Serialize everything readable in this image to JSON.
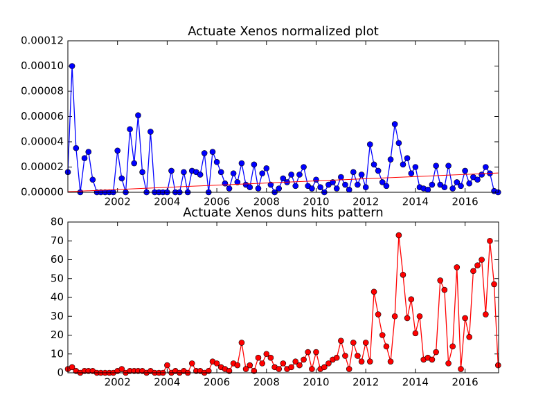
{
  "chart_data": [
    {
      "type": "line",
      "title": "Actuate Xenos normalized plot",
      "x": [
        2000,
        2000.17,
        2000.33,
        2000.5,
        2000.67,
        2000.83,
        2001,
        2001.17,
        2001.33,
        2001.5,
        2001.67,
        2001.83,
        2002,
        2002.17,
        2002.33,
        2002.5,
        2002.67,
        2002.83,
        2003,
        2003.17,
        2003.33,
        2003.5,
        2003.67,
        2003.83,
        2004,
        2004.17,
        2004.33,
        2004.5,
        2004.67,
        2004.83,
        2005,
        2005.17,
        2005.33,
        2005.5,
        2005.67,
        2005.83,
        2006,
        2006.17,
        2006.33,
        2006.5,
        2006.67,
        2006.83,
        2007,
        2007.17,
        2007.33,
        2007.5,
        2007.67,
        2007.83,
        2008,
        2008.17,
        2008.33,
        2008.5,
        2008.67,
        2008.83,
        2009,
        2009.17,
        2009.33,
        2009.5,
        2009.67,
        2009.83,
        2010,
        2010.17,
        2010.33,
        2010.5,
        2010.67,
        2010.83,
        2011,
        2011.17,
        2011.33,
        2011.5,
        2011.67,
        2011.83,
        2012,
        2012.17,
        2012.33,
        2012.5,
        2012.67,
        2012.83,
        2013,
        2013.17,
        2013.33,
        2013.5,
        2013.67,
        2013.83,
        2014,
        2014.17,
        2014.33,
        2014.5,
        2014.67,
        2014.83,
        2015,
        2015.17,
        2015.33,
        2015.5,
        2015.67,
        2015.83,
        2016,
        2016.17,
        2016.33,
        2016.5,
        2016.67,
        2016.83,
        2017,
        2017.17,
        2017.33
      ],
      "series": [
        {
          "color": "#0000ff",
          "values": [
            1.6e-05,
            0.0001,
            3.5e-05,
            0,
            2.7e-05,
            3.2e-05,
            1e-05,
            0,
            0,
            0,
            0,
            0,
            3.3e-05,
            1.1e-05,
            0,
            5e-05,
            2.3e-05,
            6.1e-05,
            1.6e-05,
            0,
            4.8e-05,
            0,
            0,
            0,
            0,
            1.7e-05,
            0,
            0,
            1.6e-05,
            0,
            1.7e-05,
            1.6e-05,
            1.4e-05,
            3.1e-05,
            0,
            3.2e-05,
            2.4e-05,
            1.6e-05,
            7e-06,
            3e-06,
            1.5e-05,
            8e-06,
            2.3e-05,
            6e-06,
            4e-06,
            2.2e-05,
            3e-06,
            1.5e-05,
            1.9e-05,
            6e-06,
            0,
            3e-06,
            1.1e-05,
            8e-06,
            1.4e-05,
            5e-06,
            1.4e-05,
            2e-05,
            5e-06,
            3e-06,
            1e-05,
            4e-06,
            0,
            6e-06,
            8e-06,
            3e-06,
            1.2e-05,
            6e-06,
            2e-06,
            1.6e-05,
            6e-06,
            1.4e-05,
            4e-06,
            3.8e-05,
            2.2e-05,
            1.7e-05,
            8e-06,
            5e-06,
            2.6e-05,
            5.4e-05,
            3.9e-05,
            2.2e-05,
            2.7e-05,
            1.5e-05,
            2e-05,
            4e-06,
            3e-06,
            2e-06,
            6e-06,
            2.1e-05,
            6e-06,
            4e-06,
            2.1e-05,
            3e-06,
            8e-06,
            5e-06,
            1.7e-05,
            7e-06,
            1.2e-05,
            1e-05,
            1.4e-05,
            2e-05,
            1.5e-05,
            1e-06,
            0
          ]
        }
      ],
      "trendline": {
        "x": [
          2000,
          2017.33
        ],
        "y": [
          5e-07,
          1.53e-05
        ],
        "color": "#ff0000"
      },
      "xlim": [
        2000,
        2017.35
      ],
      "xticks": [
        2002,
        2004,
        2006,
        2008,
        2010,
        2012,
        2014,
        2016
      ],
      "ylim": [
        0,
        0.00012
      ],
      "yticks": [
        {
          "value": 0,
          "label": "0.00000"
        },
        {
          "value": 2e-05,
          "label": "0.00002"
        },
        {
          "value": 4e-05,
          "label": "0.00004"
        },
        {
          "value": 6e-05,
          "label": "0.00006"
        },
        {
          "value": 8e-05,
          "label": "0.00008"
        },
        {
          "value": 0.0001,
          "label": "0.00010"
        },
        {
          "value": 0.00012,
          "label": "0.00012"
        }
      ]
    },
    {
      "type": "line",
      "title": "Actuate Xenos duns hits pattern",
      "x": [
        2000,
        2000.17,
        2000.33,
        2000.5,
        2000.67,
        2000.83,
        2001,
        2001.17,
        2001.33,
        2001.5,
        2001.67,
        2001.83,
        2002,
        2002.17,
        2002.33,
        2002.5,
        2002.67,
        2002.83,
        2003,
        2003.17,
        2003.33,
        2003.5,
        2003.67,
        2003.83,
        2004,
        2004.17,
        2004.33,
        2004.5,
        2004.67,
        2004.83,
        2005,
        2005.17,
        2005.33,
        2005.5,
        2005.67,
        2005.83,
        2006,
        2006.17,
        2006.33,
        2006.5,
        2006.67,
        2006.83,
        2007,
        2007.17,
        2007.33,
        2007.5,
        2007.67,
        2007.83,
        2008,
        2008.17,
        2008.33,
        2008.5,
        2008.67,
        2008.83,
        2009,
        2009.17,
        2009.33,
        2009.5,
        2009.67,
        2009.83,
        2010,
        2010.17,
        2010.33,
        2010.5,
        2010.67,
        2010.83,
        2011,
        2011.17,
        2011.33,
        2011.5,
        2011.67,
        2011.83,
        2012,
        2012.17,
        2012.33,
        2012.5,
        2012.67,
        2012.83,
        2013,
        2013.17,
        2013.33,
        2013.5,
        2013.67,
        2013.83,
        2014,
        2014.17,
        2014.33,
        2014.5,
        2014.67,
        2014.83,
        2015,
        2015.17,
        2015.33,
        2015.5,
        2015.67,
        2015.83,
        2016,
        2016.17,
        2016.33,
        2016.5,
        2016.67,
        2016.83,
        2017,
        2017.17,
        2017.33
      ],
      "series": [
        {
          "color": "#ff0000",
          "values": [
            2,
            3,
            1,
            0,
            1,
            1,
            1,
            0,
            0,
            0,
            0,
            0,
            1,
            2,
            0,
            1,
            1,
            1,
            1,
            0,
            1,
            0,
            0,
            0,
            4,
            0,
            1,
            0,
            1,
            0,
            5,
            1,
            1,
            0,
            1,
            6,
            5,
            3,
            2,
            1,
            5,
            4,
            16,
            2,
            4,
            1,
            8,
            5,
            10,
            8,
            3,
            2,
            5,
            2,
            3,
            6,
            4,
            7,
            11,
            2,
            11,
            2,
            3,
            5,
            7,
            8,
            17,
            9,
            2,
            16,
            9,
            6,
            16,
            6,
            43,
            31,
            20,
            14,
            6,
            30,
            73,
            52,
            29,
            39,
            21,
            30,
            7,
            8,
            7,
            11,
            49,
            44,
            5,
            14,
            56,
            2,
            29,
            19,
            54,
            57,
            60,
            31,
            70,
            47,
            4
          ]
        }
      ],
      "xlim": [
        2000,
        2017.35
      ],
      "xticks": [
        2002,
        2004,
        2006,
        2008,
        2010,
        2012,
        2014,
        2016
      ],
      "ylim": [
        0,
        80
      ],
      "yticks": [
        0,
        10,
        20,
        30,
        40,
        50,
        60,
        70,
        80
      ]
    }
  ]
}
